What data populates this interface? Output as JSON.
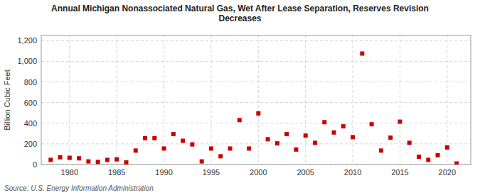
{
  "chart_data": {
    "type": "scatter",
    "title": "Annual Michigan Nonassociated Natural Gas, Wet After Lease Separation, Reserves Revision\nDecreases",
    "ylabel": "Billion Cubic Feet",
    "annotations": [
      "Source: U.S. Energy Information Administration"
    ],
    "x": [
      1978,
      1979,
      1980,
      1981,
      1982,
      1983,
      1984,
      1985,
      1986,
      1987,
      1988,
      1989,
      1990,
      1991,
      1992,
      1993,
      1994,
      1995,
      1996,
      1997,
      1998,
      1999,
      2000,
      2001,
      2002,
      2003,
      2004,
      2005,
      2006,
      2007,
      2008,
      2009,
      2010,
      2011,
      2012,
      2013,
      2014,
      2015,
      2016,
      2017,
      2018,
      2019,
      2020,
      2021
    ],
    "values": [
      45,
      70,
      65,
      60,
      30,
      25,
      45,
      50,
      20,
      135,
      255,
      255,
      155,
      295,
      230,
      195,
      30,
      155,
      80,
      155,
      430,
      155,
      495,
      245,
      205,
      295,
      145,
      280,
      210,
      410,
      310,
      370,
      265,
      1075,
      390,
      135,
      260,
      415,
      210,
      75,
      45,
      90,
      165,
      10
    ],
    "color": "#cc0000",
    "marker": "square",
    "xlim": [
      1977,
      2022.5
    ],
    "ylim": [
      0,
      1250
    ],
    "xticks": [
      1980,
      1985,
      1990,
      1995,
      2000,
      2005,
      2010,
      2015,
      2020
    ],
    "yticks": [
      0,
      200,
      400,
      600,
      800,
      {
        "value": 1000,
        "label": "1,000"
      },
      {
        "value": 1200,
        "label": "1,200"
      }
    ],
    "grid": true
  }
}
